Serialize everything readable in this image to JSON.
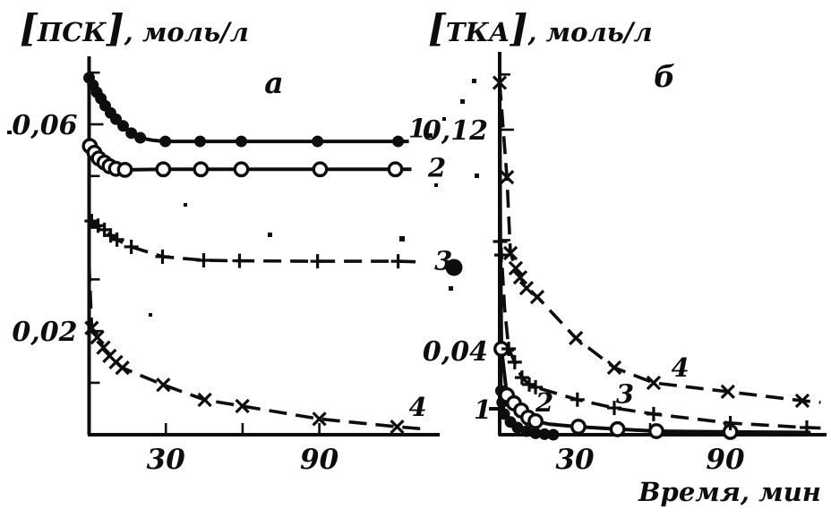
{
  "figure": {
    "background": "#ffffff",
    "ink_color": "#0d0d0d",
    "x_axis_title": "Время, мин"
  },
  "chart_data": [
    {
      "type": "line",
      "panel_label": "а",
      "ylabel": "[ПСК], моль/л",
      "xlabel": "Время, мин",
      "x_units": "мин",
      "y_units": "моль/л",
      "xlim": [
        0,
        137
      ],
      "ylim": [
        0,
        0.073
      ],
      "grid": false,
      "legend_position": "curve numbers printed at right ends of curves",
      "points_format": "[minutes, mol_per_L, marker_flag]",
      "x_ticks": [
        {
          "value": 30,
          "label": "30"
        },
        {
          "value": 60,
          "label": ""
        },
        {
          "value": 90,
          "label": "90"
        }
      ],
      "y_ticks": [
        {
          "value": 0.01,
          "label": ""
        },
        {
          "value": 0.02,
          "label": "0,02"
        },
        {
          "value": 0.03,
          "label": ""
        },
        {
          "value": 0.04,
          "label": ""
        },
        {
          "value": 0.05,
          "label": ""
        },
        {
          "value": 0.06,
          "label": "0,06"
        },
        {
          "value": 0.07,
          "label": ""
        }
      ],
      "series": [
        {
          "name": "1",
          "marker": "filled_circle",
          "line_style": "solid",
          "label": "1",
          "label_at": [
            128.3,
            0.0592
          ],
          "points": [
            [
              0,
              0.069,
              1
            ],
            [
              1.5,
              0.0676,
              1
            ],
            [
              3,
              0.0662,
              1
            ],
            [
              4.6,
              0.065,
              1
            ],
            [
              6.3,
              0.0636,
              1
            ],
            [
              8.4,
              0.0622,
              1
            ],
            [
              10.5,
              0.061,
              1
            ],
            [
              13.3,
              0.0597,
              1
            ],
            [
              16.5,
              0.0583,
              1
            ],
            [
              20,
              0.0574,
              1
            ],
            [
              25,
              0.0569,
              0
            ],
            [
              29.8,
              0.0567,
              1
            ],
            [
              43.4,
              0.0567,
              1
            ],
            [
              59.5,
              0.0567,
              1
            ],
            [
              89.3,
              0.0567,
              1
            ],
            [
              120.8,
              0.0567,
              1
            ],
            [
              125,
              0.0567,
              0
            ]
          ]
        },
        {
          "name": "2",
          "marker": "open_circle",
          "line_style": "solid",
          "label": "2",
          "label_at": [
            136,
            0.0516
          ],
          "points": [
            [
              0,
              0.0572,
              0
            ],
            [
              0.3,
              0.0558,
              1
            ],
            [
              2.1,
              0.0545,
              1
            ],
            [
              3.8,
              0.0534,
              1
            ],
            [
              6,
              0.0526,
              1
            ],
            [
              8,
              0.0519,
              1
            ],
            [
              10.5,
              0.0514,
              1
            ],
            [
              14,
              0.0512,
              1
            ],
            [
              29,
              0.0513,
              1
            ],
            [
              43.7,
              0.0513,
              1
            ],
            [
              59.5,
              0.0513,
              1
            ],
            [
              90.3,
              0.0513,
              1
            ],
            [
              119.7,
              0.0513,
              1
            ],
            [
              126,
              0.0513,
              0
            ]
          ]
        },
        {
          "name": "3",
          "marker": "plus",
          "line_style": "dashed",
          "label": "3",
          "label_at": [
            138.5,
            0.0336
          ],
          "points": [
            [
              0,
              0.0425,
              0
            ],
            [
              1,
              0.0413,
              1
            ],
            [
              3.5,
              0.0404,
              1
            ],
            [
              6,
              0.0396,
              1
            ],
            [
              8.4,
              0.0385,
              1
            ],
            [
              10.9,
              0.0377,
              1
            ],
            [
              16.5,
              0.0363,
              1
            ],
            [
              28.7,
              0.0344,
              1
            ],
            [
              44.8,
              0.0337,
              1
            ],
            [
              58.8,
              0.0336,
              1
            ],
            [
              89.3,
              0.0335,
              1
            ],
            [
              120.8,
              0.0335,
              1
            ],
            [
              128,
              0.0334,
              0
            ]
          ]
        },
        {
          "name": "4",
          "marker": "cross",
          "line_style": "dashed",
          "label": "4",
          "label_at": [
            128.5,
            0.0053
          ],
          "points": [
            [
              0,
              0.033,
              0
            ],
            [
              1,
              0.0206,
              1
            ],
            [
              3.2,
              0.0188,
              1
            ],
            [
              5.6,
              0.0168,
              1
            ],
            [
              8,
              0.0152,
              1
            ],
            [
              10.5,
              0.014,
              1
            ],
            [
              13,
              0.0129,
              1
            ],
            [
              29,
              0.0096,
              1
            ],
            [
              45.2,
              0.0067,
              1
            ],
            [
              59.9,
              0.0055,
              1
            ],
            [
              90,
              0.003,
              1
            ],
            [
              120.4,
              0.0015,
              1
            ],
            [
              130,
              0.0011,
              0
            ]
          ]
        }
      ]
    },
    {
      "type": "line",
      "panel_label": "б",
      "ylabel": "[ТКА], моль/л",
      "xlabel": "Время, мин",
      "x_units": "мин",
      "y_units": "моль/л",
      "xlim": [
        0,
        130
      ],
      "ylim": [
        0.01,
        0.148
      ],
      "grid": false,
      "legend_position": "curve numbers printed beside curves",
      "points_format": "[minutes, mol_per_L, marker_flag]",
      "x_ticks": [
        {
          "value": 30,
          "label": "30"
        },
        {
          "value": 60,
          "label": ""
        },
        {
          "value": 90,
          "label": "90"
        }
      ],
      "y_ticks": [
        {
          "value": 0.04,
          "label": "0,04"
        },
        {
          "value": 0.08,
          "label": ""
        },
        {
          "value": 0.12,
          "label": "0,12"
        },
        {
          "value": 0.14,
          "label": ""
        }
      ],
      "series": [
        {
          "name": "1",
          "marker": "filled_circle",
          "line_style": "solid",
          "label": "1",
          "label_at": [
            -6.8,
            0.0186
          ],
          "points": [
            [
              0,
              0.133,
              0
            ],
            [
              0.15,
              0.07,
              0
            ],
            [
              0.3,
              0.04,
              0
            ],
            [
              0.5,
              0.0254,
              1
            ],
            [
              1,
              0.0212,
              1
            ],
            [
              1.8,
              0.017,
              1
            ],
            [
              4.3,
              0.0141,
              1
            ],
            [
              7.1,
              0.0121,
              1
            ],
            [
              10.7,
              0.0108,
              1
            ],
            [
              14.3,
              0.01,
              1
            ],
            [
              17.9,
              0.0097,
              1
            ],
            [
              21.4,
              0.0095,
              1
            ],
            [
              23,
              0.0094,
              0
            ]
          ]
        },
        {
          "name": "2",
          "marker": "open_circle",
          "line_style": "solid",
          "label": "2",
          "label_at": [
            17.9,
            0.0211
          ],
          "points": [
            [
              0,
              0.135,
              0
            ],
            [
              0.3,
              0.08,
              0
            ],
            [
              0.7,
              0.0406,
              1
            ],
            [
              2.9,
              0.0238,
              1
            ],
            [
              5.7,
              0.0209,
              1
            ],
            [
              8.6,
              0.0183,
              1
            ],
            [
              11.4,
              0.0157,
              1
            ],
            [
              14.3,
              0.0144,
              1
            ],
            [
              20,
              0.0133,
              0
            ],
            [
              31.4,
              0.0124,
              1
            ],
            [
              47,
              0.0115,
              1
            ],
            [
              62.5,
              0.0108,
              1
            ],
            [
              92,
              0.0105,
              1
            ],
            [
              124,
              0.0103,
              0
            ]
          ]
        },
        {
          "name": "3",
          "marker": "plus",
          "line_style": "dashed",
          "label": "3",
          "label_at": [
            50,
            0.0243
          ],
          "points": [
            [
              0,
              0.138,
              0
            ],
            [
              0.2,
              0.0795,
              1
            ],
            [
              0.7,
              0.0746,
              1
            ],
            [
              2,
              0.055,
              0
            ],
            [
              3.6,
              0.0406,
              1
            ],
            [
              6,
              0.0358,
              1
            ],
            [
              8.9,
              0.0302,
              1
            ],
            [
              11.8,
              0.0277,
              1
            ],
            [
              14.3,
              0.0267,
              1
            ],
            [
              31,
              0.0222,
              1
            ],
            [
              45.7,
              0.0192,
              1
            ],
            [
              61.4,
              0.017,
              1
            ],
            [
              92,
              0.0137,
              1
            ],
            [
              122.5,
              0.0121,
              1
            ],
            [
              128,
              0.0119,
              0
            ]
          ]
        },
        {
          "name": "4",
          "marker": "cross",
          "line_style": "dashed",
          "label": "4",
          "label_at": [
            72,
            0.0338
          ],
          "points": [
            [
              0,
              0.137,
              1
            ],
            [
              2.9,
              0.1028,
              1
            ],
            [
              4.3,
              0.0753,
              1
            ],
            [
              6.4,
              0.0698,
              1
            ],
            [
              8.2,
              0.0665,
              1
            ],
            [
              10.7,
              0.0626,
              1
            ],
            [
              15,
              0.0594,
              1
            ],
            [
              30.4,
              0.0445,
              1
            ],
            [
              45.7,
              0.0338,
              1
            ],
            [
              61.4,
              0.0283,
              1
            ],
            [
              91,
              0.0251,
              1
            ],
            [
              120.7,
              0.0218,
              1
            ],
            [
              128,
              0.0212,
              0
            ]
          ]
        }
      ]
    }
  ]
}
